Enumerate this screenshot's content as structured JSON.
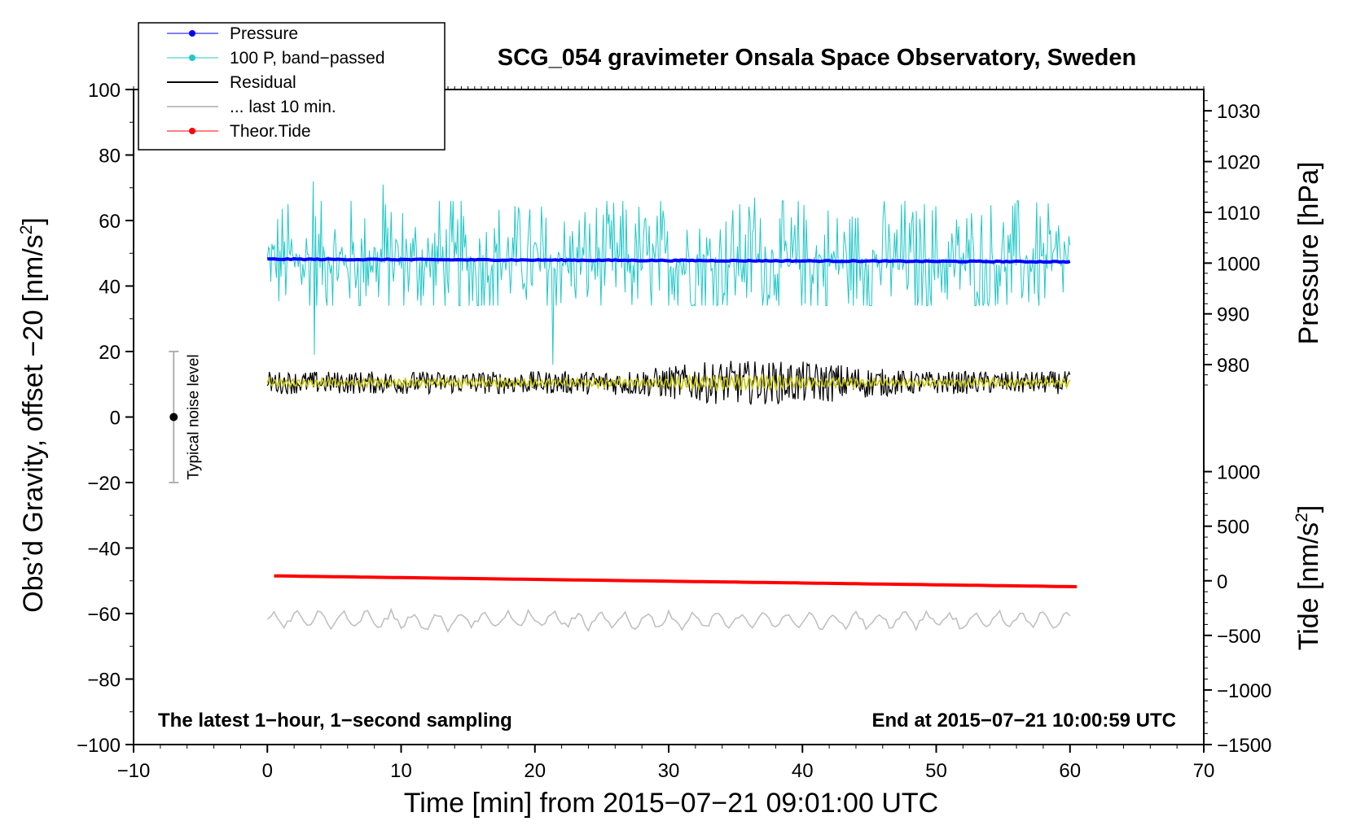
{
  "chart_data": {
    "type": "line",
    "title": "SCG_054 gravimeter Onsala Space Observatory, Sweden",
    "xlabel": "Time [min] from 2015−07−21 09:01:00 UTC",
    "ylabel": "Obs’d Gravity, offset −20 [nm/s²]",
    "ylabel_main": "Obs’d Gravity, offset −20 [nm/s",
    "ylabel_sup": "2",
    "ylabel_end": "]",
    "y2label_pressure": "Pressure [hPa]",
    "y2label_tide_main": "Tide [nm/s",
    "y2label_tide_sup": "2",
    "y2label_tide_end": "]",
    "xlim": [
      -10,
      70
    ],
    "ylim": [
      -100,
      100
    ],
    "xticks": [
      -10,
      0,
      10,
      20,
      30,
      40,
      50,
      60,
      70
    ],
    "xtick_labels": [
      "−10",
      "0",
      "10",
      "20",
      "30",
      "40",
      "50",
      "60",
      "70"
    ],
    "yticks": [
      100,
      80,
      60,
      40,
      20,
      0,
      -20,
      -40,
      -60,
      -80,
      -100
    ],
    "ytick_labels": [
      "100",
      "80",
      "60",
      "40",
      "20",
      "0",
      "−20",
      "−40",
      "−60",
      "−80",
      "−100"
    ],
    "pressure_axis": {
      "ticks": [
        1030,
        1020,
        1010,
        1000,
        990,
        980
      ],
      "tick_labels": [
        "1030",
        "1020",
        "1010",
        "1000",
        "990",
        "980"
      ],
      "map_to_left_axis": {
        "p1": 1000,
        "y1": 47,
        "p2": 980,
        "y2": 16
      }
    },
    "tide_axis": {
      "ticks": [
        1000,
        500,
        0,
        -500,
        -1000,
        -1500
      ],
      "tick_labels": [
        "1000",
        "500",
        "0",
        "−500",
        "−1000",
        "−1500"
      ],
      "map_to_left_axis": {
        "t1": 0,
        "y1": -50,
        "t2": -1500,
        "y2": -100
      }
    },
    "legend": {
      "position": "top-left",
      "entries": [
        {
          "label": "Pressure",
          "color": "#0000ff",
          "marker": true
        },
        {
          "label": "100 P, band−passed",
          "color": "#20c8c8",
          "marker": true
        },
        {
          "label": "Residual",
          "color": "#000000",
          "marker": false
        },
        {
          "label": "... last 10 min.",
          "color": "#c0c0c0",
          "marker": false
        },
        {
          "label": "Theor.Tide",
          "color": "#ff0000",
          "marker": true
        }
      ]
    },
    "annotations": {
      "left_bottom": "The latest 1−hour, 1−second sampling",
      "right_bottom": "End at 2015−07−21 10:00:59 UTC",
      "noise_label": "Typical noise level"
    },
    "noise_bar": {
      "x": -7,
      "center": 0,
      "low": -20,
      "high": 20
    },
    "series": [
      {
        "name": "Pressure",
        "color": "#0000ff",
        "x_range": [
          0,
          60
        ],
        "y_start": 48.2,
        "y_end": 47.4,
        "noise": 0.3
      },
      {
        "name": "100 P, band−passed",
        "color": "#20c8c8",
        "x_range": [
          0,
          60
        ],
        "center": 47.5,
        "typical_min": 36,
        "typical_max": 64,
        "extremes": [
          {
            "x": 3.4,
            "y": 72
          },
          {
            "x": 3.5,
            "y": 19
          },
          {
            "x": 21.3,
            "y": 16
          },
          {
            "x": 8.7,
            "y": 71
          },
          {
            "x": 36.4,
            "y": 67
          }
        ]
      },
      {
        "name": "Residual",
        "color": "#000000",
        "x_range": [
          0,
          60
        ],
        "center": 10.5,
        "amplitude": 3.5,
        "max_amplitude": 7
      },
      {
        "name": "Residual (smoothed)",
        "color": "#c8c800",
        "x_range": [
          0,
          60
        ],
        "center": 10.5,
        "amplitude": 1.5
      },
      {
        "name": "... last 10 min.",
        "color": "#c0c0c0",
        "x_range": [
          0,
          60
        ],
        "center": -62,
        "amplitude": 2.5,
        "range": [
          -66,
          -57
        ]
      },
      {
        "name": "Theor.Tide",
        "color": "#ff0000",
        "x_range": [
          0.5,
          60.5
        ],
        "y_start": -48.5,
        "y_end": -51.8
      }
    ]
  }
}
